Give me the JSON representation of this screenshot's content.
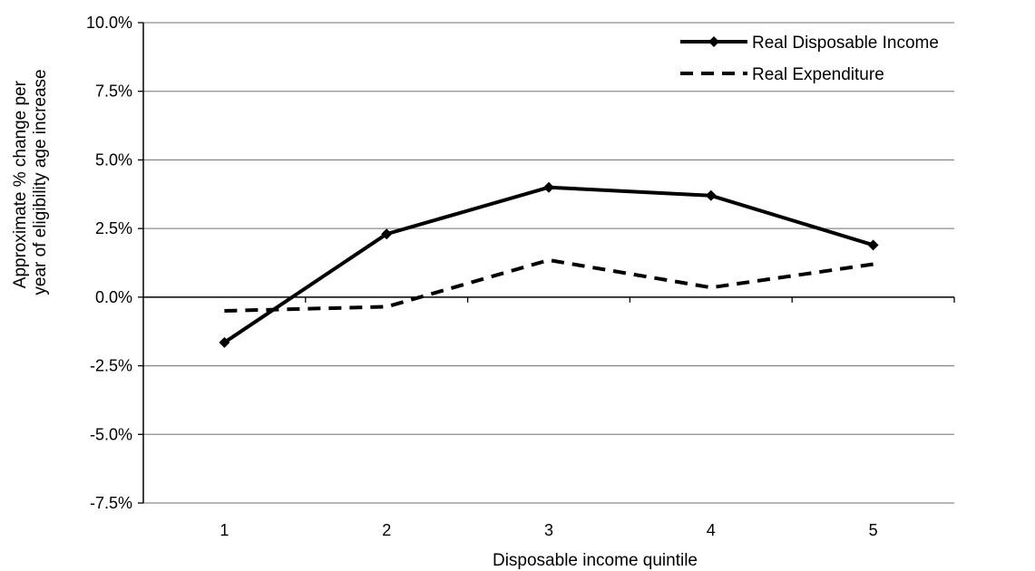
{
  "chart_data": {
    "type": "line",
    "title": "",
    "xlabel": "Disposable income quintile",
    "ylabel_lines": [
      "Approximate % change per",
      "year of eligibility age increase"
    ],
    "categories": [
      "1",
      "2",
      "3",
      "4",
      "5"
    ],
    "ylim": [
      -0.075,
      0.1
    ],
    "y_ticks": [
      -0.075,
      -0.05,
      -0.025,
      0.0,
      0.025,
      0.05,
      0.075,
      0.1
    ],
    "y_tick_labels": [
      "-7.5%",
      "-5.0%",
      "-2.5%",
      "0.0%",
      "2.5%",
      "5.0%",
      "7.5%",
      "10.0%"
    ],
    "grid": true,
    "legend_position": "top-right",
    "series": [
      {
        "name": "Real Disposable Income",
        "values": [
          -0.0165,
          0.023,
          0.04,
          0.037,
          0.019
        ],
        "style": "solid",
        "marker": "diamond",
        "color": "#000000"
      },
      {
        "name": "Real Expenditure",
        "values": [
          -0.005,
          -0.0035,
          0.0135,
          0.0035,
          0.012
        ],
        "style": "dashed",
        "marker": "none",
        "color": "#000000"
      }
    ]
  }
}
